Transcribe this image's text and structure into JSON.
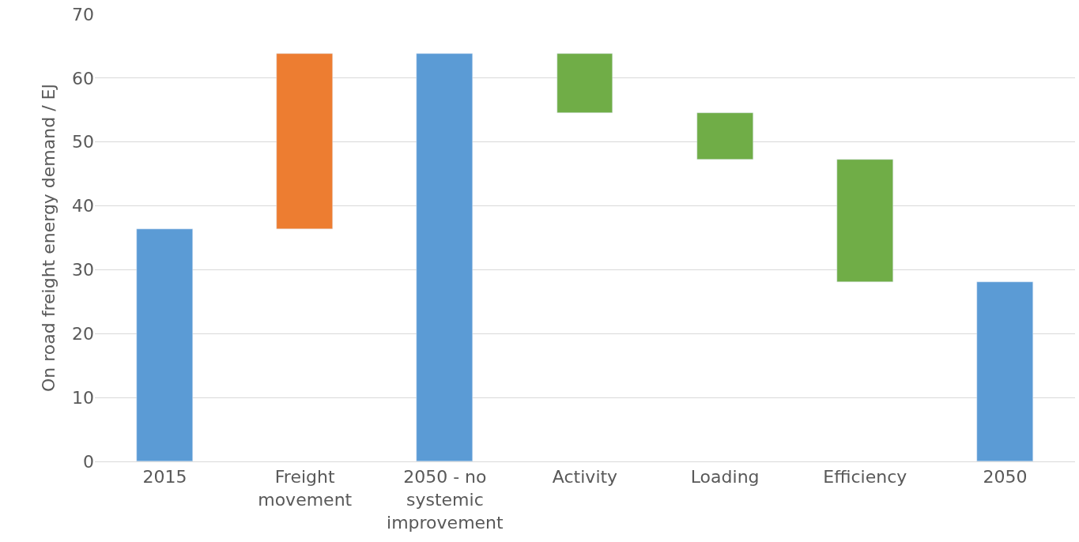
{
  "chart_data": {
    "type": "bar",
    "ylabel": "On road freight energy demand / EJ",
    "categories": [
      "2015",
      "Freight movement",
      "2050 - no systemic improvement",
      "Activity",
      "Loading",
      "Efficiency",
      "2050"
    ],
    "values": [
      36.4,
      27.4,
      63.8,
      9.3,
      7.3,
      19.1,
      28.1
    ],
    "base": [
      0,
      36.4,
      0,
      54.5,
      47.2,
      28.1,
      0
    ],
    "colors": [
      "#5b9bd5",
      "#ed7d31",
      "#5b9bd5",
      "#70ad47",
      "#70ad47",
      "#70ad47",
      "#5b9bd5"
    ],
    "ylim": [
      0,
      70
    ],
    "yticks": [
      0,
      10,
      20,
      30,
      40,
      50,
      60,
      70
    ],
    "grid": "y",
    "legend": false
  }
}
